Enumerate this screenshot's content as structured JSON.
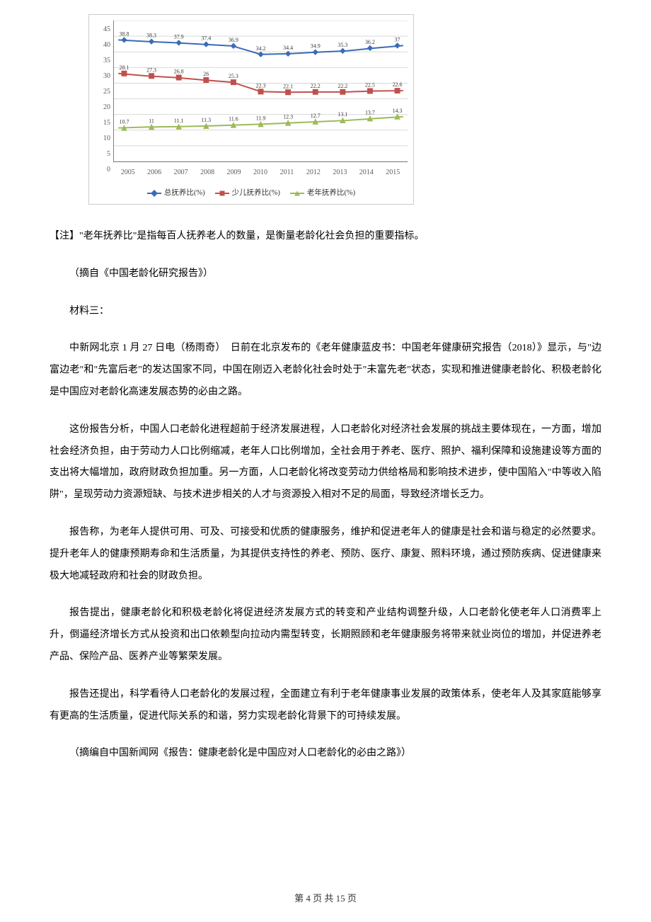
{
  "chart": {
    "type": "line",
    "categories": [
      "2005",
      "2006",
      "2007",
      "2008",
      "2009",
      "2010",
      "2011",
      "2012",
      "2013",
      "2014",
      "2015"
    ],
    "ylim": [
      0,
      45
    ],
    "ytick_step": 5,
    "yticks": [
      45,
      40,
      35,
      30,
      25,
      20,
      15,
      10,
      5,
      0
    ],
    "background_color": "#ffffff",
    "border_color": "#d9d9d9",
    "grid_color": "#d9d9d9",
    "axis_color": "#808080",
    "axis_label_fontsize": 10,
    "value_label_fontsize": 8,
    "legend_fontsize": 10.5,
    "line_width": 2,
    "marker_size": 7,
    "series": [
      {
        "name": "总抚养比(%)",
        "color": "#3b6bb5",
        "marker": "diamond",
        "values": [
          38.8,
          38.3,
          37.9,
          37.4,
          36.9,
          34.2,
          34.4,
          34.9,
          35.3,
          36.2,
          37
        ]
      },
      {
        "name": "少儿抚养比(%)",
        "color": "#c0504d",
        "marker": "square",
        "values": [
          28.1,
          27.3,
          26.8,
          26,
          25.3,
          22.3,
          22.1,
          22.2,
          22.2,
          22.5,
          22.6
        ]
      },
      {
        "name": "老年抚养比(%)",
        "color": "#9bbb59",
        "marker": "triangle",
        "values": [
          10.7,
          11,
          11.1,
          11.3,
          11.6,
          11.9,
          12.3,
          12.7,
          13.1,
          13.7,
          14.3
        ]
      }
    ]
  },
  "text": {
    "note": "【注】\"老年抚养比\"是指每百人抚养老人的数量，是衡量老龄化社会负担的重要指标。",
    "source2": "（摘自《中国老龄化研究报告》）",
    "mat3_heading": "材料三：",
    "p1": "中新网北京 1 月 27 日电（杨雨奇）　日前在北京发布的《老年健康蓝皮书：中国老年健康研究报告（2018）》显示，与\"边富边老\"和\"先富后老\"的发达国家不同，中国在刚迈入老龄化社会时处于\"未富先老\"状态，实现和推进健康老龄化、积极老龄化是中国应对老龄化高速发展态势的必由之路。",
    "p2": "这份报告分析，中国人口老龄化进程超前于经济发展进程，人口老龄化对经济社会发展的挑战主要体现在，一方面，增加社会经济负担，由于劳动力人口比例缩减，老年人口比例增加，全社会用于养老、医疗、照护、福利保障和设施建设等方面的支出将大幅增加，政府财政负担加重。另一方面，人口老龄化将改变劳动力供给格局和影响技术进步，使中国陷入\"中等收入陷阱\"，呈现劳动力资源短缺、与技术进步相关的人才与资源投入相对不足的局面，导致经济增长乏力。",
    "p3": "报告称，为老年人提供可用、可及、可接受和优质的健康服务，维护和促进老年人的健康是社会和谐与稳定的必然要求。提升老年人的健康预期寿命和生活质量，为其提供支持性的养老、预防、医疗、康复、照料环境，通过预防疾病、促进健康来极大地减轻政府和社会的财政负担。",
    "p4": "报告提出，健康老龄化和积极老龄化将促进经济发展方式的转变和产业结构调整升级，人口老龄化使老年人口消费率上升，倒逼经济增长方式从投资和出口依赖型向拉动内需型转变，长期照顾和老年健康服务将带来就业岗位的增加，并促进养老产品、保险产品、医养产业等繁荣发展。",
    "p5": "报告还提出，科学看待人口老龄化的发展过程，全面建立有利于老年健康事业发展的政策体系，使老年人及其家庭能够享有更高的生活质量，促进代际关系的和谐，努力实现老龄化背景下的可持续发展。",
    "source3": "（摘编自中国新闻网《报告：健康老龄化是中国应对人口老龄化的必由之路》）",
    "footer": "第 4 页 共 15 页"
  }
}
